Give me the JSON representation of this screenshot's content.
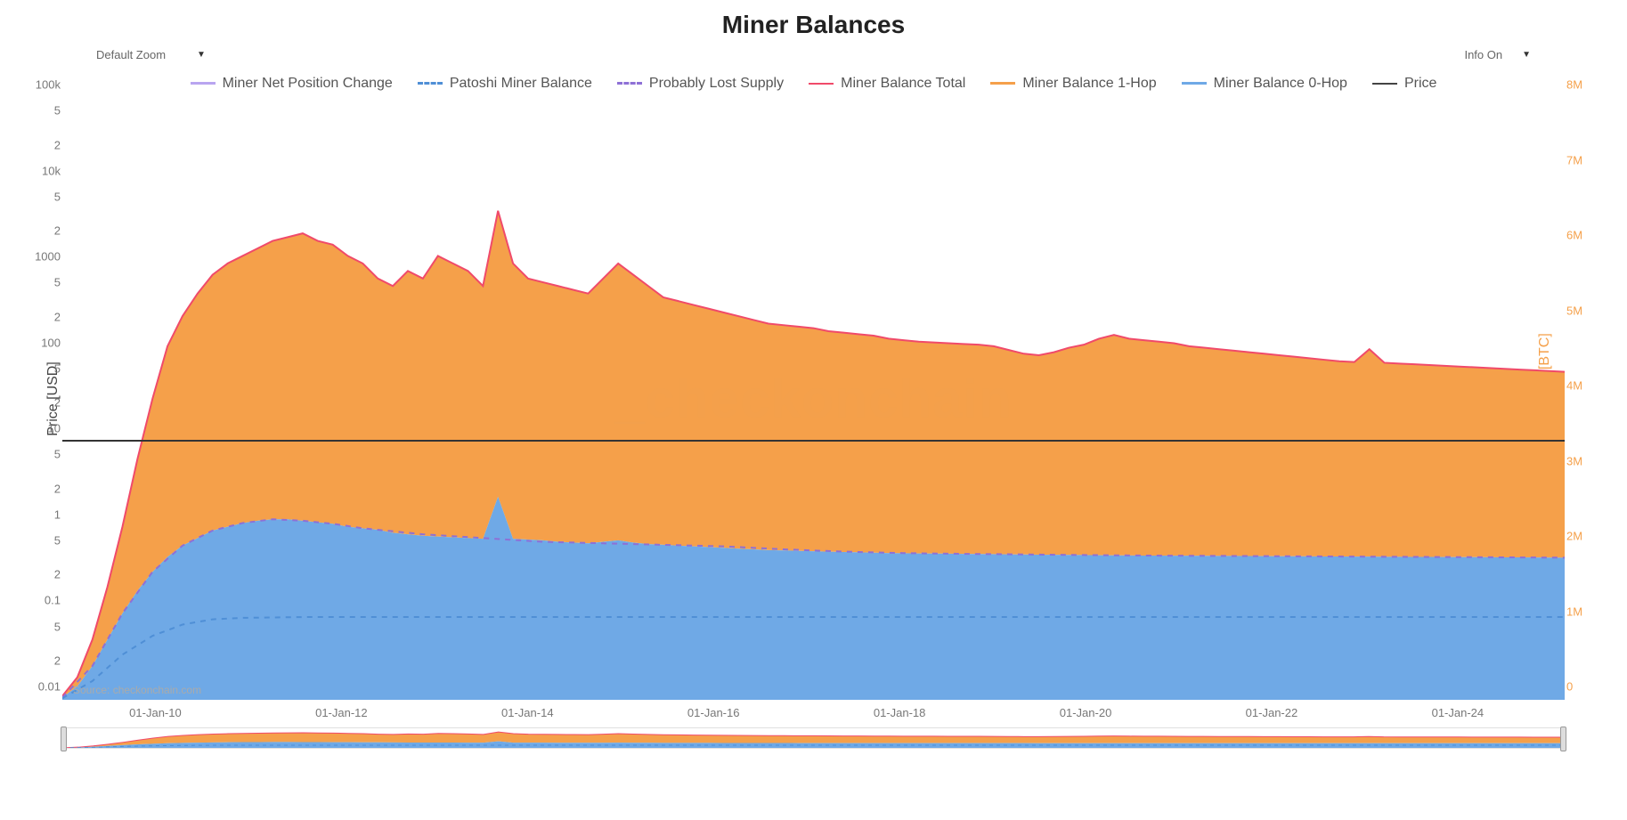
{
  "title": "Miner Balances",
  "controls": {
    "zoom_label": "Default Zoom",
    "info_label": "Info On"
  },
  "legend": [
    {
      "label": "Miner Net Position Change",
      "color": "#b9a5f0",
      "style": "solid"
    },
    {
      "label": "Patoshi Miner Balance",
      "color": "#4f8fd6",
      "style": "dashed"
    },
    {
      "label": "Probably Lost Supply",
      "color": "#8e70d6",
      "style": "dashed"
    },
    {
      "label": "Miner Balance Total",
      "color": "#f04a6a",
      "style": "thin"
    },
    {
      "label": "Miner Balance 1-Hop",
      "color": "#f5a04a",
      "style": "solid"
    },
    {
      "label": "Miner Balance 0-Hop",
      "color": "#6fa9e6",
      "style": "solid"
    },
    {
      "label": "Price",
      "color": "#444444",
      "style": "thin"
    }
  ],
  "axes": {
    "y_left_label": "Price [USD]",
    "y_right_label": "Miner Balance [BTC]",
    "y_left": {
      "min_exp": -2,
      "max_exp": 5,
      "scale": "log"
    },
    "y_left_tick_labels": [
      "0.01",
      "2",
      "5",
      "0.1",
      "2",
      "5",
      "1",
      "2",
      "5",
      "10",
      "2",
      "5",
      "100",
      "2",
      "5",
      "1000",
      "2",
      "5",
      "10k",
      "2",
      "5",
      "100k"
    ],
    "y_right": {
      "min": 0,
      "max": 8000000,
      "step": 1000000,
      "scale": "linear"
    },
    "y_right_tick_labels": [
      "0",
      "1M",
      "2M",
      "3M",
      "4M",
      "5M",
      "6M",
      "7M",
      "8M"
    ],
    "x_tick_labels": [
      "01-Jan-10",
      "01-Jan-12",
      "01-Jan-14",
      "01-Jan-16",
      "01-Jan-18",
      "01-Jan-20",
      "01-Jan-22",
      "01-Jan-24"
    ],
    "x_range": [
      "2009-01",
      "2025-02"
    ]
  },
  "series": {
    "miner_balance_total": {
      "color": "#f04a6a",
      "line_width": 1.2,
      "x": [
        0,
        1,
        2,
        3,
        4,
        5,
        6,
        7,
        8,
        9,
        10,
        11,
        12,
        13,
        14,
        15,
        16,
        17,
        18,
        19,
        20,
        21,
        22,
        23,
        24,
        25,
        26,
        27,
        28,
        29,
        30,
        31,
        32,
        33,
        34,
        35,
        36,
        37,
        38,
        39,
        40,
        41,
        42,
        43,
        44,
        45,
        46,
        47,
        48,
        49,
        50,
        51,
        52,
        53,
        54,
        55,
        56,
        57,
        58,
        59,
        60,
        61,
        62,
        63,
        64,
        65,
        66,
        67,
        68,
        69,
        70,
        71,
        72,
        73,
        74,
        75,
        76,
        77,
        78,
        79,
        80,
        81,
        82,
        83,
        84,
        85,
        86,
        87,
        88,
        89,
        90,
        91,
        92,
        93,
        94,
        95,
        96,
        97,
        98,
        99,
        100
      ],
      "y": [
        50,
        300,
        800,
        1500,
        2300,
        3200,
        4000,
        4700,
        5100,
        5400,
        5650,
        5800,
        5900,
        6000,
        6100,
        6150,
        6200,
        6100,
        6050,
        5900,
        5800,
        5600,
        5500,
        5700,
        5600,
        5900,
        5800,
        5700,
        5500,
        6500,
        5800,
        5600,
        5550,
        5500,
        5450,
        5400,
        5600,
        5800,
        5650,
        5500,
        5350,
        5300,
        5250,
        5200,
        5150,
        5100,
        5050,
        5000,
        4980,
        4960,
        4940,
        4900,
        4880,
        4860,
        4840,
        4800,
        4780,
        4760,
        4750,
        4740,
        4730,
        4720,
        4700,
        4650,
        4600,
        4580,
        4620,
        4680,
        4720,
        4800,
        4850,
        4800,
        4780,
        4760,
        4740,
        4700,
        4680,
        4660,
        4640,
        4620,
        4600,
        4580,
        4560,
        4540,
        4520,
        4500,
        4490,
        4660,
        4480,
        4470,
        4460,
        4450,
        4440,
        4430,
        4420,
        4410,
        4400,
        4390,
        4380,
        4370,
        4360
      ],
      "y_units": "thousands_BTC"
    },
    "miner_balance_1hop": {
      "fill_color": "#f5a04a",
      "opacity": 1.0,
      "note": "area between 0-hop and total"
    },
    "miner_balance_0hop": {
      "fill_color": "#6fa9e6",
      "opacity": 1.0,
      "x": [
        0,
        1,
        2,
        3,
        4,
        5,
        6,
        7,
        8,
        9,
        10,
        11,
        12,
        13,
        14,
        15,
        16,
        17,
        18,
        19,
        20,
        21,
        22,
        23,
        24,
        25,
        26,
        27,
        28,
        29,
        30,
        31,
        32,
        33,
        34,
        35,
        36,
        37,
        38,
        39,
        40,
        41,
        42,
        43,
        44,
        45,
        46,
        47,
        48,
        49,
        50,
        51,
        52,
        53,
        54,
        55,
        56,
        57,
        58,
        59,
        60,
        61,
        62,
        63,
        64,
        65,
        66,
        67,
        68,
        69,
        70,
        71,
        72,
        73,
        74,
        75,
        76,
        77,
        78,
        79,
        80,
        81,
        82,
        83,
        84,
        85,
        86,
        87,
        88,
        89,
        90,
        91,
        92,
        93,
        94,
        95,
        96,
        97,
        98,
        99,
        100
      ],
      "y": [
        30,
        180,
        450,
        800,
        1150,
        1450,
        1700,
        1900,
        2050,
        2150,
        2250,
        2300,
        2350,
        2380,
        2400,
        2400,
        2380,
        2360,
        2340,
        2300,
        2280,
        2260,
        2220,
        2200,
        2180,
        2170,
        2160,
        2150,
        2140,
        2700,
        2140,
        2130,
        2120,
        2100,
        2090,
        2080,
        2100,
        2120,
        2090,
        2070,
        2060,
        2050,
        2040,
        2030,
        2020,
        2010,
        2000,
        1990,
        1985,
        1980,
        1975,
        1970,
        1965,
        1960,
        1955,
        1950,
        1948,
        1946,
        1944,
        1942,
        1940,
        1938,
        1936,
        1934,
        1932,
        1930,
        1928,
        1926,
        1924,
        1922,
        1920,
        1919,
        1918,
        1917,
        1916,
        1915,
        1914,
        1913,
        1912,
        1911,
        1910,
        1909,
        1908,
        1907,
        1906,
        1905,
        1904,
        1903,
        1902,
        1901,
        1900,
        1899,
        1898,
        1897,
        1896,
        1895,
        1894,
        1893,
        1892,
        1891,
        1890
      ],
      "y_units": "thousands_BTC"
    },
    "probably_lost_supply": {
      "color": "#8e70d6",
      "dash": "6,6",
      "line_width": 2,
      "x": [
        0,
        2,
        4,
        6,
        8,
        10,
        12,
        14,
        16,
        18,
        20,
        24,
        28,
        32,
        36,
        40,
        44,
        48,
        52,
        56,
        60,
        64,
        68,
        72,
        76,
        80,
        84,
        88,
        92,
        96,
        100
      ],
      "y": [
        30,
        450,
        1150,
        1700,
        2050,
        2250,
        2350,
        2400,
        2380,
        2340,
        2280,
        2200,
        2150,
        2100,
        2080,
        2060,
        2040,
        2000,
        1970,
        1950,
        1940,
        1932,
        1924,
        1918,
        1914,
        1910,
        1906,
        1902,
        1898,
        1894,
        1890
      ],
      "y_units": "thousands_BTC"
    },
    "patoshi_miner_balance": {
      "color": "#4f8fd6",
      "dash": "6,6",
      "line_width": 2,
      "x": [
        0,
        2,
        4,
        6,
        8,
        10,
        12,
        16,
        20,
        30,
        40,
        50,
        60,
        70,
        80,
        90,
        100
      ],
      "y": [
        20,
        250,
        600,
        850,
        1000,
        1070,
        1090,
        1100,
        1100,
        1100,
        1100,
        1100,
        1100,
        1100,
        1100,
        1100,
        1100
      ],
      "y_units": "thousands_BTC"
    },
    "price": {
      "color": "#444444",
      "line_width": 1.5,
      "constant_y_value": 10,
      "y_units": "USD"
    }
  },
  "watermark": "_checkonchain",
  "source_text": "Source: checkonchain.com",
  "styling": {
    "background_color": "#ffffff",
    "grid_color": "transparent",
    "title_fontsize": 28,
    "legend_fontsize": 16,
    "tick_fontsize": 13,
    "axis_label_fontsize": 16,
    "right_axis_color": "#f5a04a"
  }
}
